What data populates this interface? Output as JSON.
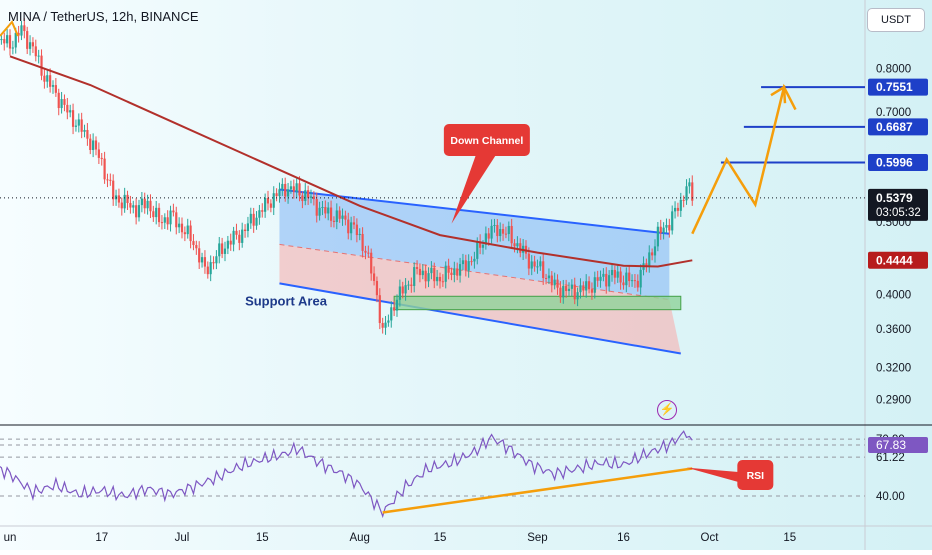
{
  "header": {
    "title": "MINA / TetherUS, 12h, BINANCE",
    "currency": "USDT"
  },
  "chart_data": [
    {
      "type": "line",
      "name": "price",
      "title": "MINA / TetherUS, 12h, BINANCE",
      "y_axis": {
        "scale": "log",
        "ylim": [
          0.27,
          0.98
        ],
        "ticks": [
          "0.8000",
          "0.7000",
          "0.5000",
          "0.4000",
          "0.3600",
          "0.3200",
          "0.2900"
        ],
        "tick_values": [
          0.8,
          0.7,
          0.5,
          0.4,
          0.36,
          0.32,
          0.29
        ]
      },
      "x_axis": {
        "ticks": [
          "un",
          "17",
          "Jul",
          "15",
          "Aug",
          "15",
          "Sep",
          "16",
          "Oct",
          "15"
        ],
        "tick_dates": [
          "2024-06-01",
          "2024-06-17",
          "2024-07-01",
          "2024-07-15",
          "2024-08-01",
          "2024-08-15",
          "2024-09-01",
          "2024-09-16",
          "2024-10-01",
          "2024-10-15"
        ]
      },
      "price_path": [
        [
          "2024-05-28",
          0.89
        ],
        [
          "2024-06-01",
          0.86
        ],
        [
          "2024-06-03",
          0.9
        ],
        [
          "2024-06-05",
          0.85
        ],
        [
          "2024-06-07",
          0.78
        ],
        [
          "2024-06-09",
          0.74
        ],
        [
          "2024-06-11",
          0.7
        ],
        [
          "2024-06-13",
          0.67
        ],
        [
          "2024-06-15",
          0.64
        ],
        [
          "2024-06-17",
          0.6
        ],
        [
          "2024-06-19",
          0.54
        ],
        [
          "2024-06-21",
          0.53
        ],
        [
          "2024-06-23",
          0.52
        ],
        [
          "2024-06-25",
          0.53
        ],
        [
          "2024-06-27",
          0.5
        ],
        [
          "2024-06-29",
          0.51
        ],
        [
          "2024-07-01",
          0.49
        ],
        [
          "2024-07-03",
          0.47
        ],
        [
          "2024-07-05",
          0.43
        ],
        [
          "2024-07-07",
          0.45
        ],
        [
          "2024-07-09",
          0.47
        ],
        [
          "2024-07-11",
          0.48
        ],
        [
          "2024-07-13",
          0.5
        ],
        [
          "2024-07-15",
          0.52
        ],
        [
          "2024-07-17",
          0.54
        ],
        [
          "2024-07-19",
          0.555
        ],
        [
          "2024-07-21",
          0.55
        ],
        [
          "2024-07-23",
          0.54
        ],
        [
          "2024-07-25",
          0.52
        ],
        [
          "2024-07-27",
          0.51
        ],
        [
          "2024-07-29",
          0.505
        ],
        [
          "2024-07-31",
          0.49
        ],
        [
          "2024-08-02",
          0.46
        ],
        [
          "2024-08-04",
          0.4
        ],
        [
          "2024-08-05",
          0.355
        ],
        [
          "2024-08-07",
          0.39
        ],
        [
          "2024-08-09",
          0.41
        ],
        [
          "2024-08-11",
          0.43
        ],
        [
          "2024-08-13",
          0.425
        ],
        [
          "2024-08-15",
          0.42
        ],
        [
          "2024-08-17",
          0.43
        ],
        [
          "2024-08-19",
          0.435
        ],
        [
          "2024-08-21",
          0.45
        ],
        [
          "2024-08-23",
          0.48
        ],
        [
          "2024-08-25",
          0.49
        ],
        [
          "2024-08-27",
          0.48
        ],
        [
          "2024-08-29",
          0.46
        ],
        [
          "2024-08-31",
          0.44
        ],
        [
          "2024-09-02",
          0.43
        ],
        [
          "2024-09-04",
          0.41
        ],
        [
          "2024-09-06",
          0.405
        ],
        [
          "2024-09-08",
          0.405
        ],
        [
          "2024-09-10",
          0.41
        ],
        [
          "2024-09-12",
          0.42
        ],
        [
          "2024-09-14",
          0.425
        ],
        [
          "2024-09-16",
          0.42
        ],
        [
          "2024-09-18",
          0.415
        ],
        [
          "2024-09-20",
          0.44
        ],
        [
          "2024-09-22",
          0.48
        ],
        [
          "2024-09-24",
          0.5
        ],
        [
          "2024-09-26",
          0.53
        ],
        [
          "2024-09-27",
          0.56
        ],
        [
          "2024-09-28",
          0.5379
        ]
      ],
      "moving_average": [
        [
          "2024-06-01",
          0.83
        ],
        [
          "2024-06-15",
          0.76
        ],
        [
          "2024-07-01",
          0.67
        ],
        [
          "2024-07-15",
          0.6
        ],
        [
          "2024-08-01",
          0.525
        ],
        [
          "2024-08-15",
          0.48
        ],
        [
          "2024-09-01",
          0.455
        ],
        [
          "2024-09-16",
          0.437
        ],
        [
          "2024-09-22",
          0.436
        ],
        [
          "2024-09-28",
          0.4444
        ]
      ],
      "down_channel": {
        "upper": [
          [
            "2024-07-18",
            0.552
          ],
          [
            "2024-09-24",
            0.482
          ]
        ],
        "lower": [
          [
            "2024-07-18",
            0.414
          ],
          [
            "2024-09-26",
            0.334
          ]
        ]
      },
      "support_area": {
        "from": "2024-08-07",
        "to": "2024-09-26",
        "low": 0.382,
        "high": 0.398
      },
      "projection": [
        [
          "2024-09-28",
          0.482
        ],
        [
          "2024-10-04",
          0.605
        ],
        [
          "2024-10-09",
          0.527
        ],
        [
          "2024-10-14",
          0.755
        ],
        [
          "2024-10-16",
          0.705
        ]
      ],
      "levels": [
        {
          "label": "0.7551",
          "value": 0.7551,
          "from": "2024-10-10"
        },
        {
          "label": "0.6687",
          "value": 0.6687,
          "from": "2024-10-07"
        },
        {
          "label": "0.5996",
          "value": 0.5996,
          "from": "2024-10-03"
        }
      ],
      "last_price": {
        "label": "0.5379",
        "value": 0.5379,
        "countdown": "03:05:32"
      },
      "ma_label": {
        "label": "0.4444",
        "value": 0.4444
      },
      "annotations": {
        "down_channel": "Down Channel",
        "support_area": "Support Area"
      }
    },
    {
      "type": "line",
      "name": "RSI",
      "ylim": [
        28,
        76
      ],
      "y_ticks": [
        "70.99",
        "61.22",
        "40.00"
      ],
      "y_tick_values": [
        70.99,
        61.22,
        40.0
      ],
      "current_label": "67.83",
      "current_value": 67.83,
      "annotation": "RSI",
      "values": [
        [
          "2024-05-28",
          58
        ],
        [
          "2024-06-01",
          52
        ],
        [
          "2024-06-05",
          42
        ],
        [
          "2024-06-09",
          46
        ],
        [
          "2024-06-13",
          41
        ],
        [
          "2024-06-17",
          43
        ],
        [
          "2024-06-21",
          40
        ],
        [
          "2024-06-25",
          44
        ],
        [
          "2024-06-29",
          41
        ],
        [
          "2024-07-03",
          45
        ],
        [
          "2024-07-07",
          50
        ],
        [
          "2024-07-11",
          56
        ],
        [
          "2024-07-15",
          60
        ],
        [
          "2024-07-19",
          63
        ],
        [
          "2024-07-21",
          66
        ],
        [
          "2024-07-25",
          58
        ],
        [
          "2024-07-29",
          52
        ],
        [
          "2024-08-01",
          46
        ],
        [
          "2024-08-05",
          31
        ],
        [
          "2024-08-09",
          45
        ],
        [
          "2024-08-13",
          55
        ],
        [
          "2024-08-17",
          58
        ],
        [
          "2024-08-21",
          64
        ],
        [
          "2024-08-24",
          72
        ],
        [
          "2024-08-27",
          66
        ],
        [
          "2024-08-31",
          57
        ],
        [
          "2024-09-04",
          52
        ],
        [
          "2024-09-08",
          55
        ],
        [
          "2024-09-12",
          58
        ],
        [
          "2024-09-16",
          57
        ],
        [
          "2024-09-20",
          63
        ],
        [
          "2024-09-24",
          68
        ],
        [
          "2024-09-27",
          75
        ],
        [
          "2024-09-28",
          67.83
        ]
      ],
      "trendline": [
        [
          "2024-08-05",
          31
        ],
        [
          "2024-09-28",
          55
        ]
      ]
    }
  ],
  "colors": {
    "up": "#26a69a",
    "down": "#ef5350",
    "ma": "#b2302b",
    "level": "#1e40c8",
    "projection": "#f59e0b",
    "rsi": "#7e57c2",
    "callout": "#e53935",
    "channel_fill": "#7fb4f5",
    "channel_lower_fill": "#f4b6b6",
    "support_fill": "#8fd39a"
  },
  "icons": {
    "alert": "lightning-icon"
  }
}
